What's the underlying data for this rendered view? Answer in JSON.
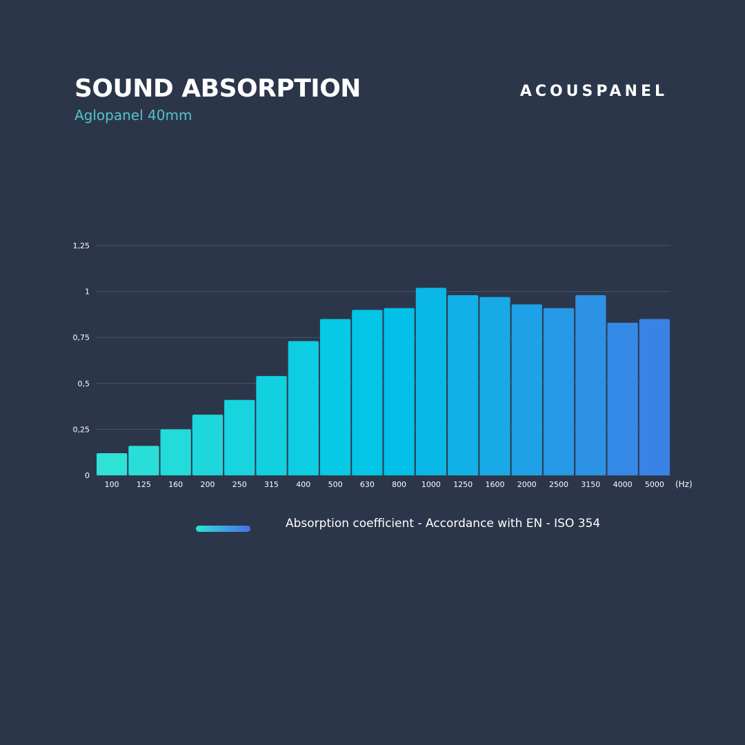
{
  "header": {
    "title": "SOUND ABSORPTION",
    "subtitle": "Aglopanel 40mm",
    "brand": "ACOUSPANEL"
  },
  "legend": {
    "label": "Absorption coefficient - Accordance with EN - ISO 354"
  },
  "colors": {
    "background": "#2c364a",
    "subtitle": "#54c3c9",
    "gridline": "#4a5468",
    "bar_start": "#2ee2d6",
    "bar_mid": "#00c4e8",
    "bar_end": "#3b82e6",
    "legend_start": "#2ee2d6",
    "legend_end": "#4a6fe8"
  },
  "chart_data": {
    "type": "bar",
    "title": "SOUND ABSORPTION",
    "subtitle": "Aglopanel 40mm",
    "xunit": "(Hz)",
    "ylim": [
      0,
      1.25
    ],
    "yticks": [
      0,
      0.25,
      0.5,
      0.75,
      1,
      1.25
    ],
    "ytick_labels": [
      "0",
      "0,25",
      "0,5",
      "0,75",
      "1",
      "1,25"
    ],
    "grid": true,
    "legend_placement": "bottom",
    "categories": [
      "100",
      "125",
      "160",
      "200",
      "250",
      "315",
      "400",
      "500",
      "630",
      "800",
      "1000",
      "1250",
      "1600",
      "2000",
      "2500",
      "3150",
      "4000",
      "5000"
    ],
    "series": [
      {
        "name": "Absorption coefficient - Accordance with EN - ISO 354",
        "values": [
          0.12,
          0.16,
          0.25,
          0.33,
          0.41,
          0.54,
          0.73,
          0.85,
          0.9,
          0.91,
          1.02,
          0.98,
          0.97,
          0.93,
          0.91,
          0.98,
          0.83,
          0.85
        ]
      }
    ]
  }
}
